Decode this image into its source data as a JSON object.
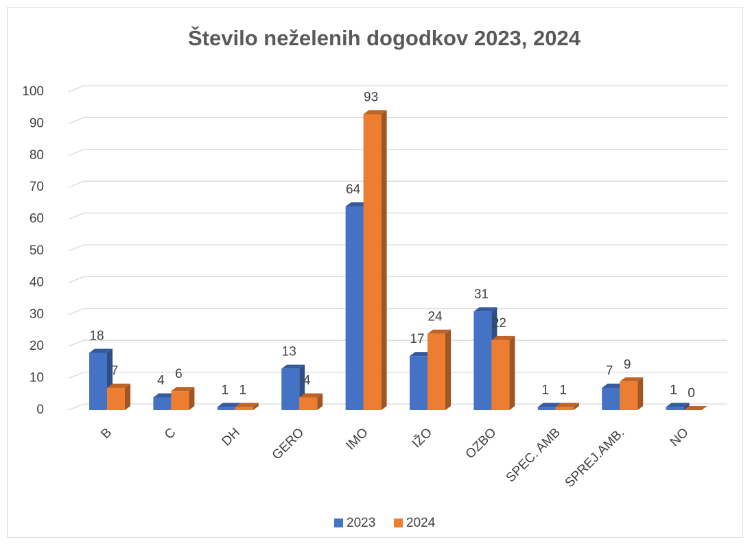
{
  "chart_data": {
    "type": "bar3d",
    "title": "Število neželenih dogodkov 2023, 2024",
    "categories": [
      "B",
      "C",
      "DH",
      "GERO",
      "IMO",
      "IŽO",
      "OZBO",
      "SPEC. AMB",
      "SPREJ.AMB.",
      "NO"
    ],
    "series": [
      {
        "name": "2023",
        "color": "#4472c4",
        "values": [
          18,
          4,
          1,
          13,
          64,
          17,
          31,
          1,
          7,
          1
        ]
      },
      {
        "name": "2024",
        "color": "#ed7d31",
        "values": [
          7,
          6,
          1,
          4,
          93,
          24,
          22,
          1,
          9,
          0
        ]
      }
    ],
    "ylim": [
      0,
      100
    ],
    "yticks": [
      0,
      10,
      20,
      30,
      40,
      50,
      60,
      70,
      80,
      90,
      100
    ],
    "grid": true,
    "legend": "bottom"
  }
}
